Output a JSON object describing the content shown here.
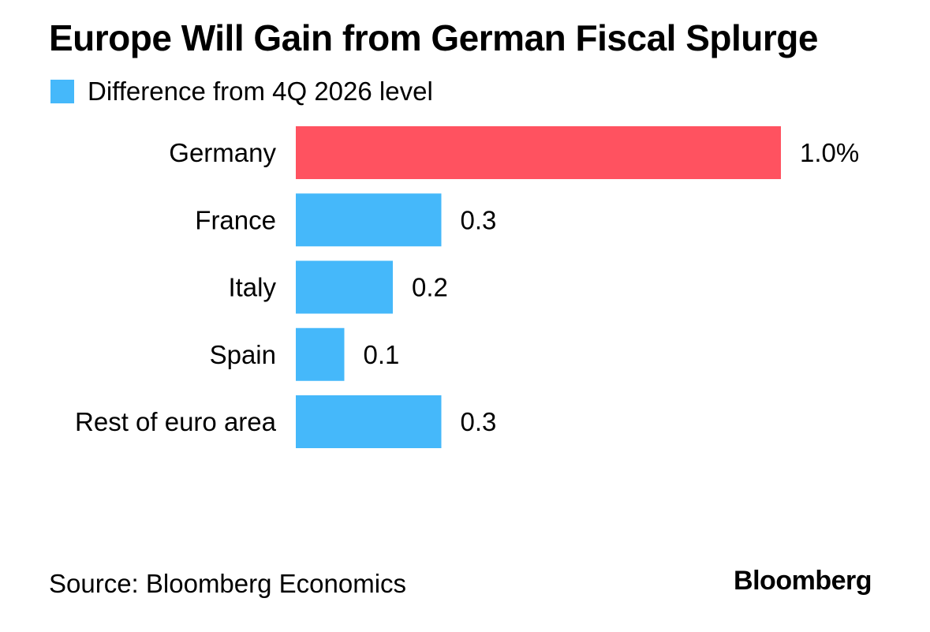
{
  "colors": {
    "highlight": "#ff5260",
    "series": "#45b8fa",
    "text": "#000000",
    "background": "#ffffff"
  },
  "chart_data": {
    "type": "bar",
    "orientation": "horizontal",
    "title": "Europe Will Gain from German Fiscal Splurge",
    "legend": [
      {
        "label": "Difference from 4Q 2026 level",
        "color": "#45b8fa"
      }
    ],
    "legend_position": "top-left",
    "categories": [
      "Germany",
      "France",
      "Italy",
      "Spain",
      "Rest of euro area"
    ],
    "values": [
      1.0,
      0.3,
      0.2,
      0.1,
      0.3
    ],
    "value_labels": [
      "1.0%",
      "0.3",
      "0.2",
      "0.1",
      "0.3"
    ],
    "bar_colors": [
      "#ff5260",
      "#45b8fa",
      "#45b8fa",
      "#45b8fa",
      "#45b8fa"
    ],
    "unit": "%",
    "xlim": [
      0,
      1.0
    ],
    "grid": false,
    "xlabel": "",
    "ylabel": ""
  },
  "footer": {
    "source": "Source: Bloomberg Economics",
    "brand": "Bloomberg"
  }
}
